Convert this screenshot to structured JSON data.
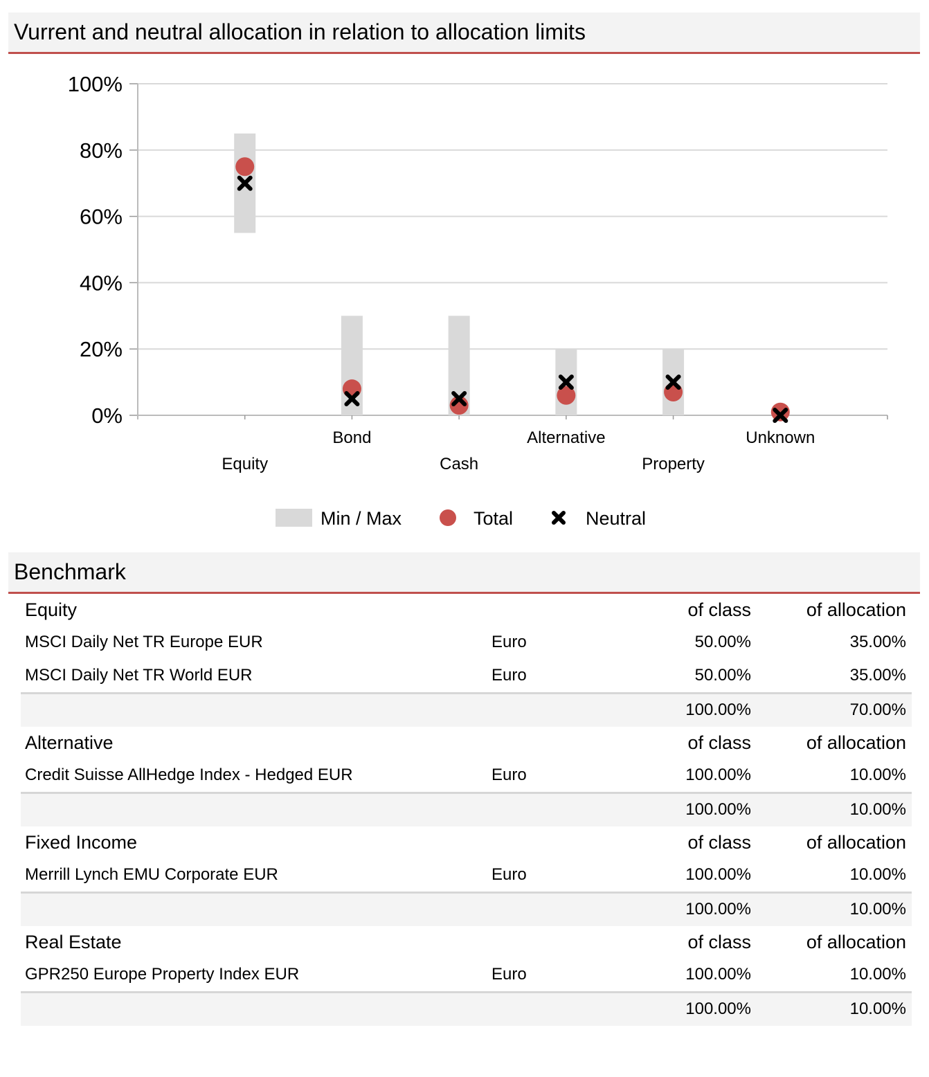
{
  "chart_title": "Vurrent and neutral allocation in relation to allocation limits",
  "chart_data": {
    "type": "scatter",
    "categories": [
      "Equity",
      "Bond",
      "Cash",
      "Alternative",
      "Property",
      "Unknown"
    ],
    "ylim": [
      0,
      100
    ],
    "yticks": [
      "0%",
      "20%",
      "40%",
      "60%",
      "80%",
      "100%"
    ],
    "ytick_values": [
      0,
      20,
      40,
      60,
      80,
      100
    ],
    "grid": true,
    "legend_position": "bottom",
    "series": [
      {
        "name": "Min / Max",
        "kind": "range",
        "color": "#d9d9d9",
        "min": [
          55,
          0,
          0,
          0,
          0,
          null
        ],
        "max": [
          85,
          30,
          30,
          20,
          20,
          null
        ]
      },
      {
        "name": "Total",
        "kind": "marker-circle",
        "color": "#c9504c",
        "values": [
          75,
          8,
          3,
          6,
          7,
          1
        ]
      },
      {
        "name": "Neutral",
        "kind": "marker-x",
        "color": "#000000",
        "values": [
          70,
          5,
          5,
          10,
          10,
          0
        ]
      }
    ]
  },
  "benchmark": {
    "title": "Benchmark",
    "groups": [
      {
        "name": "Equity",
        "col_class": "of class",
        "col_alloc": "of allocation",
        "rows": [
          {
            "name": "MSCI Daily Net TR Europe EUR",
            "currency": "Euro",
            "of_class": "50.00%",
            "of_alloc": "35.00%"
          },
          {
            "name": "MSCI Daily Net TR World EUR",
            "currency": "Euro",
            "of_class": "50.00%",
            "of_alloc": "35.00%"
          }
        ],
        "total_class": "100.00%",
        "total_alloc": "70.00%"
      },
      {
        "name": "Alternative",
        "col_class": "of class",
        "col_alloc": "of allocation",
        "rows": [
          {
            "name": "Credit Suisse AllHedge Index - Hedged EUR",
            "currency": "Euro",
            "of_class": "100.00%",
            "of_alloc": "10.00%"
          }
        ],
        "total_class": "100.00%",
        "total_alloc": "10.00%"
      },
      {
        "name": "Fixed Income",
        "col_class": "of class",
        "col_alloc": "of allocation",
        "rows": [
          {
            "name": "Merrill Lynch EMU Corporate EUR",
            "currency": "Euro",
            "of_class": "100.00%",
            "of_alloc": "10.00%"
          }
        ],
        "total_class": "100.00%",
        "total_alloc": "10.00%"
      },
      {
        "name": "Real Estate",
        "col_class": "of class",
        "col_alloc": "of allocation",
        "rows": [
          {
            "name": "GPR250 Europe Property Index EUR",
            "currency": "Euro",
            "of_class": "100.00%",
            "of_alloc": "10.00%"
          }
        ],
        "total_class": "100.00%",
        "total_alloc": "10.00%"
      }
    ]
  }
}
